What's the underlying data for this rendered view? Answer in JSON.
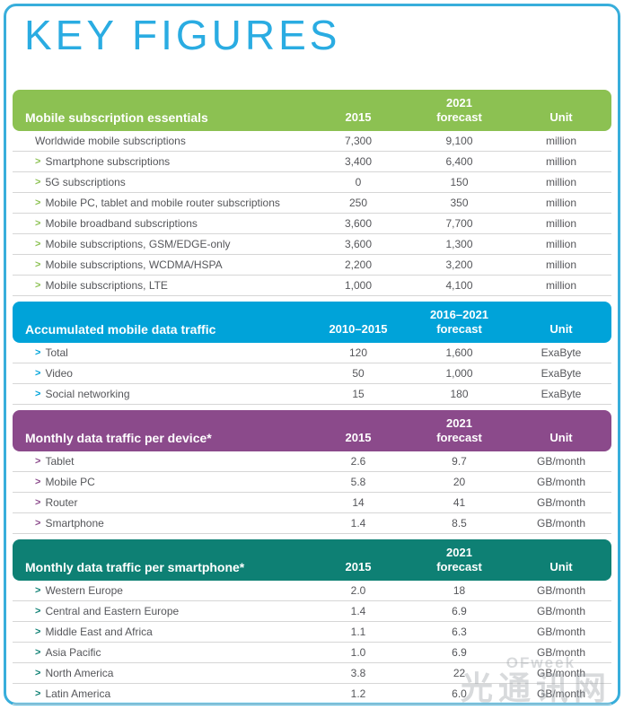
{
  "page": {
    "title": "KEY FIGURES"
  },
  "watermark": {
    "line1": "OFweek",
    "line2": "光通讯网"
  },
  "colors": {
    "page_border": "#38aedb",
    "title": "#2aace2",
    "row_text": "#55565a",
    "divider": "#d6d6d6",
    "green": "#8cc152",
    "blue": "#00a3d9",
    "purple": "#8b4a8b",
    "teal": "#0e8074"
  },
  "sections": [
    {
      "name": "mobile-subscription-essentials",
      "color": "#8cc152",
      "header": {
        "label": "Mobile subscription essentials",
        "period": "2015",
        "forecast_line1": "2021",
        "forecast_line2": "forecast",
        "unit": "Unit"
      },
      "rows": [
        {
          "chevron": false,
          "label": "Worldwide mobile subscriptions",
          "v1": "7,300",
          "v2": "9,100",
          "unit": "million"
        },
        {
          "chevron": true,
          "label": "Smartphone subscriptions",
          "v1": "3,400",
          "v2": "6,400",
          "unit": "million"
        },
        {
          "chevron": true,
          "label": "5G subscriptions",
          "v1": "0",
          "v2": "150",
          "unit": "million"
        },
        {
          "chevron": true,
          "label": "Mobile PC, tablet and mobile router subscriptions",
          "v1": "250",
          "v2": "350",
          "unit": "million"
        },
        {
          "chevron": true,
          "label": "Mobile broadband subscriptions",
          "v1": "3,600",
          "v2": "7,700",
          "unit": "million"
        },
        {
          "chevron": true,
          "label": "Mobile subscriptions, GSM/EDGE-only",
          "v1": "3,600",
          "v2": "1,300",
          "unit": "million"
        },
        {
          "chevron": true,
          "label": "Mobile subscriptions, WCDMA/HSPA",
          "v1": "2,200",
          "v2": "3,200",
          "unit": "million"
        },
        {
          "chevron": true,
          "label": "Mobile subscriptions, LTE",
          "v1": "1,000",
          "v2": "4,100",
          "unit": "million"
        }
      ]
    },
    {
      "name": "accumulated-mobile-data-traffic",
      "color": "#00a3d9",
      "header": {
        "label": "Accumulated mobile data traffic",
        "period": "2010–2015",
        "forecast_line1": "2016–2021",
        "forecast_line2": "forecast",
        "unit": "Unit"
      },
      "rows": [
        {
          "chevron": true,
          "label": "Total",
          "v1": "120",
          "v2": "1,600",
          "unit": "ExaByte"
        },
        {
          "chevron": true,
          "label": "Video",
          "v1": "50",
          "v2": "1,000",
          "unit": "ExaByte"
        },
        {
          "chevron": true,
          "label": "Social networking",
          "v1": "15",
          "v2": "180",
          "unit": "ExaByte"
        }
      ]
    },
    {
      "name": "monthly-data-traffic-per-device",
      "color": "#8b4a8b",
      "header": {
        "label": "Monthly data traffic per device*",
        "period": "2015",
        "forecast_line1": "2021",
        "forecast_line2": "forecast",
        "unit": "Unit"
      },
      "rows": [
        {
          "chevron": true,
          "label": "Tablet",
          "v1": "2.6",
          "v2": "9.7",
          "unit": "GB/month"
        },
        {
          "chevron": true,
          "label": "Mobile PC",
          "v1": "5.8",
          "v2": "20",
          "unit": "GB/month"
        },
        {
          "chevron": true,
          "label": "Router",
          "v1": "14",
          "v2": "41",
          "unit": "GB/month"
        },
        {
          "chevron": true,
          "label": "Smartphone",
          "v1": "1.4",
          "v2": "8.5",
          "unit": "GB/month"
        }
      ]
    },
    {
      "name": "monthly-data-traffic-per-smartphone",
      "color": "#0e8074",
      "header": {
        "label": "Monthly data traffic per smartphone*",
        "period": "2015",
        "forecast_line1": "2021",
        "forecast_line2": "forecast",
        "unit": "Unit"
      },
      "rows": [
        {
          "chevron": true,
          "label": "Western Europe",
          "v1": "2.0",
          "v2": "18",
          "unit": "GB/month"
        },
        {
          "chevron": true,
          "label": "Central and Eastern Europe",
          "v1": "1.4",
          "v2": "6.9",
          "unit": "GB/month"
        },
        {
          "chevron": true,
          "label": "Middle East and Africa",
          "v1": "1.1",
          "v2": "6.3",
          "unit": "GB/month"
        },
        {
          "chevron": true,
          "label": "Asia Pacific",
          "v1": "1.0",
          "v2": "6.9",
          "unit": "GB/month"
        },
        {
          "chevron": true,
          "label": "North America",
          "v1": "3.8",
          "v2": "22",
          "unit": "GB/month"
        },
        {
          "chevron": true,
          "label": "Latin America",
          "v1": "1.2",
          "v2": "6.0",
          "unit": "GB/month"
        }
      ]
    }
  ]
}
